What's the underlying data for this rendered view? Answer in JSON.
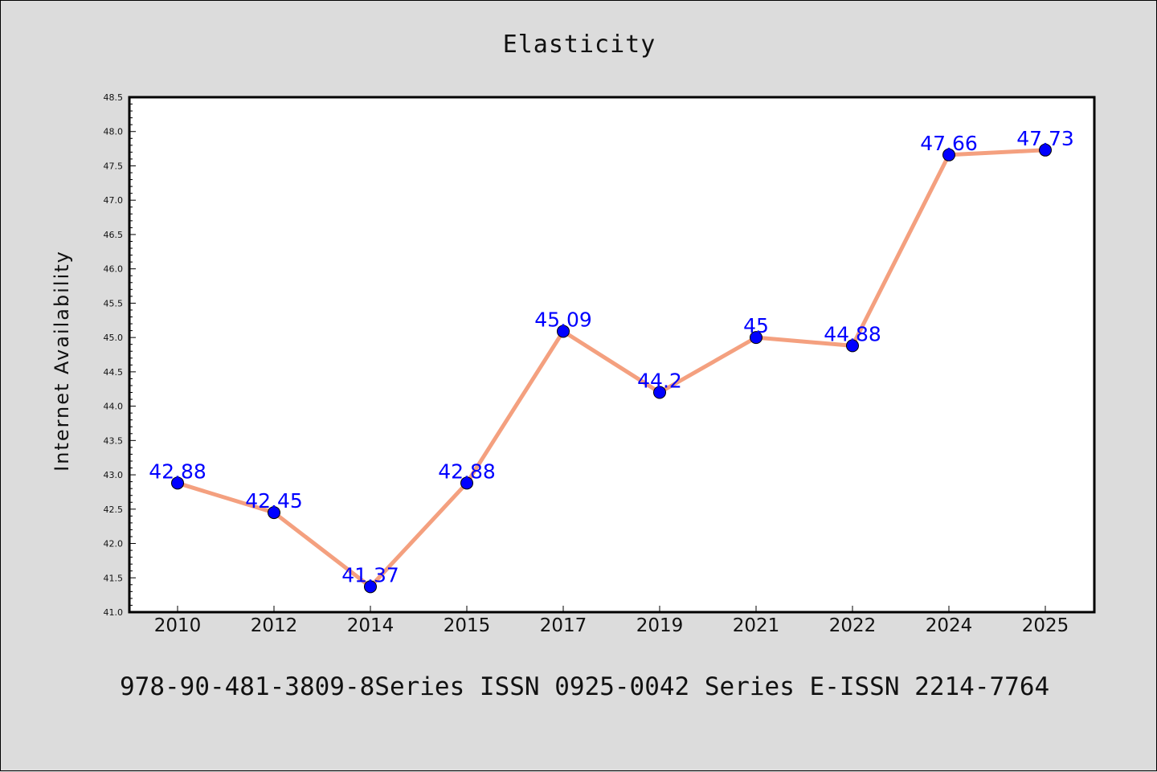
{
  "chart_data": {
    "type": "line",
    "title": "Elasticity",
    "xlabel": "",
    "ylabel": "Internet Availability",
    "categories": [
      "2010",
      "2012",
      "2014",
      "2015",
      "2017",
      "2019",
      "2021",
      "2022",
      "2024",
      "2025"
    ],
    "values": [
      42.88,
      42.45,
      41.37,
      42.88,
      45.09,
      44.2,
      45,
      44.88,
      47.66,
      47.73
    ],
    "data_labels": [
      "42.88",
      "42.45",
      "41.37",
      "42.88",
      "45.09",
      "44.2",
      "45",
      "44.88",
      "47.66",
      "47.73"
    ],
    "ylim": [
      41.0,
      48.5
    ],
    "yticks": [
      "41.0",
      "41.5",
      "42.0",
      "42.5",
      "43.0",
      "43.5",
      "44.0",
      "44.5",
      "45.0",
      "45.5",
      "46.0",
      "46.5",
      "47.0",
      "47.5",
      "48.0",
      "48.5"
    ],
    "grid": false,
    "legend": "none",
    "colors": {
      "line": "#f4a07f",
      "marker": "#0000ff",
      "label": "#0000ff",
      "plot_background": "#ffffff",
      "page_background": "#dcdcdc"
    }
  },
  "footer": "978-90-481-3809-8Series ISSN 0925-0042 Series E-ISSN 2214-7764"
}
